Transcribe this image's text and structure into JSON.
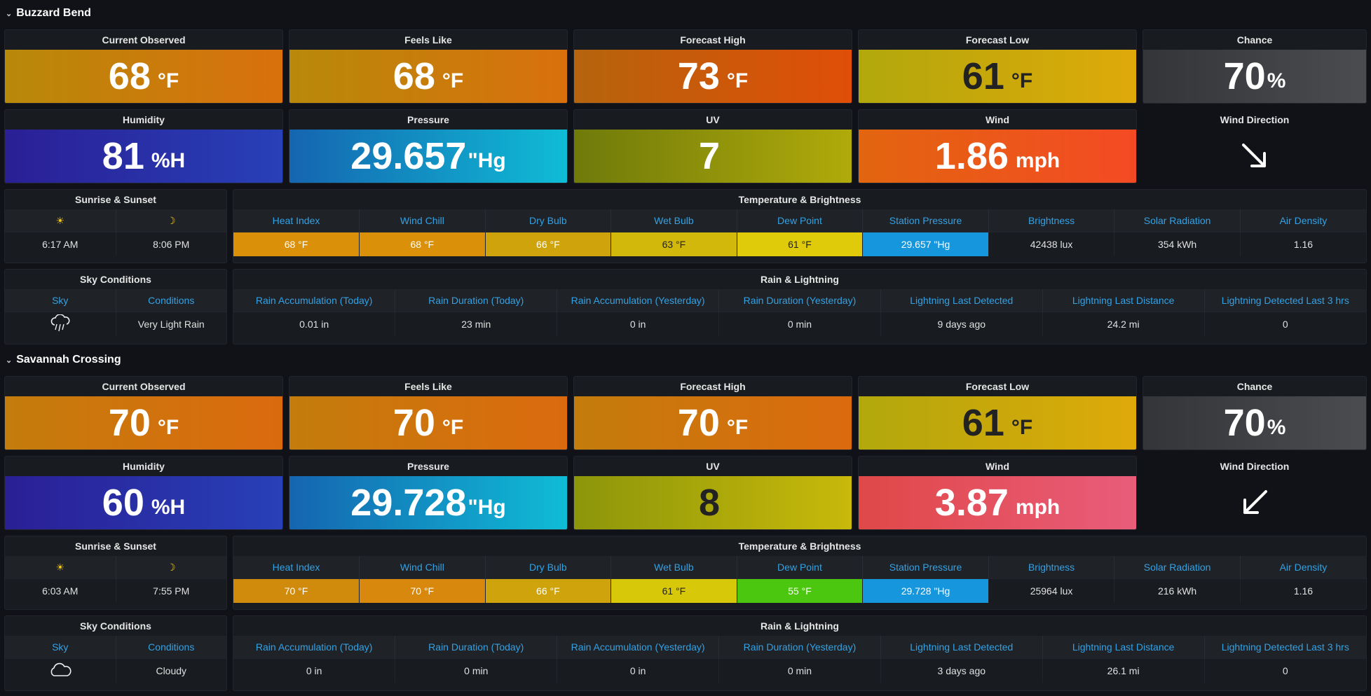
{
  "stations": [
    {
      "name": "Buzzard Bend",
      "stats": [
        {
          "title": "Current Observed",
          "value": "68",
          "unit": "°F"
        },
        {
          "title": "Feels Like",
          "value": "68",
          "unit": "°F"
        },
        {
          "title": "Forecast High",
          "value": "73",
          "unit": "°F"
        },
        {
          "title": "Forecast Low",
          "value": "61",
          "unit": "°F"
        },
        {
          "title": "Chance",
          "value": "70",
          "unit": "%"
        },
        {
          "title": "Humidity",
          "value": "81",
          "unit": "%H"
        },
        {
          "title": "Pressure",
          "value": "29.657",
          "unit": "\"Hg"
        },
        {
          "title": "UV",
          "value": "7",
          "unit": ""
        },
        {
          "title": "Wind",
          "value": "1.86",
          "unit": "mph"
        }
      ],
      "wind_direction": {
        "title": "Wind Direction",
        "arrow": "arrow-down-right"
      },
      "sun": {
        "title": "Sunrise & Sunset",
        "sunrise_icon": "☀",
        "sunset_icon": "☽",
        "sunrise": "6:17 AM",
        "sunset": "8:06 PM"
      },
      "temp": {
        "title": "Temperature & Brightness",
        "headers": [
          "Heat Index",
          "Wind Chill",
          "Dry Bulb",
          "Wet Bulb",
          "Dew Point",
          "Station Pressure",
          "Brightness",
          "Solar Radiation",
          "Air Density"
        ],
        "values": [
          "68 °F",
          "68 °F",
          "66 °F",
          "63 °F",
          "61 °F",
          "29.657 \"Hg",
          "42438 lux",
          "354 kWh",
          "1.16"
        ]
      },
      "sky": {
        "title": "Sky Conditions",
        "headers": [
          "Sky",
          "Conditions"
        ],
        "icon": "rain-cloud-icon",
        "condition": "Very Light Rain"
      },
      "rain": {
        "title": "Rain & Lightning",
        "headers": [
          "Rain Accumulation (Today)",
          "Rain Duration (Today)",
          "Rain Accumulation (Yesterday)",
          "Rain Duration (Yesterday)",
          "Lightning Last Detected",
          "Lightning Last Distance",
          "Lightning Detected Last 3 hrs"
        ],
        "values": [
          "0.01 in",
          "23 min",
          "0 in",
          "0 min",
          "9 days ago",
          "24.2 mi",
          "0"
        ]
      }
    },
    {
      "name": "Savannah Crossing",
      "stats": [
        {
          "title": "Current Observed",
          "value": "70",
          "unit": "°F"
        },
        {
          "title": "Feels Like",
          "value": "70",
          "unit": "°F"
        },
        {
          "title": "Forecast High",
          "value": "70",
          "unit": "°F"
        },
        {
          "title": "Forecast Low",
          "value": "61",
          "unit": "°F"
        },
        {
          "title": "Chance",
          "value": "70",
          "unit": "%"
        },
        {
          "title": "Humidity",
          "value": "60",
          "unit": "%H"
        },
        {
          "title": "Pressure",
          "value": "29.728",
          "unit": "\"Hg"
        },
        {
          "title": "UV",
          "value": "8",
          "unit": ""
        },
        {
          "title": "Wind",
          "value": "3.87",
          "unit": "mph"
        }
      ],
      "wind_direction": {
        "title": "Wind Direction",
        "arrow": "arrow-down-left"
      },
      "sun": {
        "title": "Sunrise & Sunset",
        "sunrise_icon": "☀",
        "sunset_icon": "☽",
        "sunrise": "6:03 AM",
        "sunset": "7:55 PM"
      },
      "temp": {
        "title": "Temperature & Brightness",
        "headers": [
          "Heat Index",
          "Wind Chill",
          "Dry Bulb",
          "Wet Bulb",
          "Dew Point",
          "Station Pressure",
          "Brightness",
          "Solar Radiation",
          "Air Density"
        ],
        "values": [
          "70 °F",
          "70 °F",
          "66 °F",
          "61 °F",
          "55 °F",
          "29.728 \"Hg",
          "25964 lux",
          "216 kWh",
          "1.16"
        ]
      },
      "sky": {
        "title": "Sky Conditions",
        "headers": [
          "Sky",
          "Conditions"
        ],
        "icon": "cloud-icon",
        "condition": "Cloudy"
      },
      "rain": {
        "title": "Rain & Lightning",
        "headers": [
          "Rain Accumulation (Today)",
          "Rain Duration (Today)",
          "Rain Accumulation (Yesterday)",
          "Rain Duration (Yesterday)",
          "Lightning Last Detected",
          "Lightning Last Distance",
          "Lightning Detected Last 3 hrs"
        ],
        "values": [
          "0 in",
          "0 min",
          "0 in",
          "0 min",
          "3 days ago",
          "26.1 mi",
          "0"
        ]
      }
    }
  ],
  "colors": {
    "background": "#111217",
    "panel": "#181b1f",
    "header_text": "#33a2e5"
  }
}
